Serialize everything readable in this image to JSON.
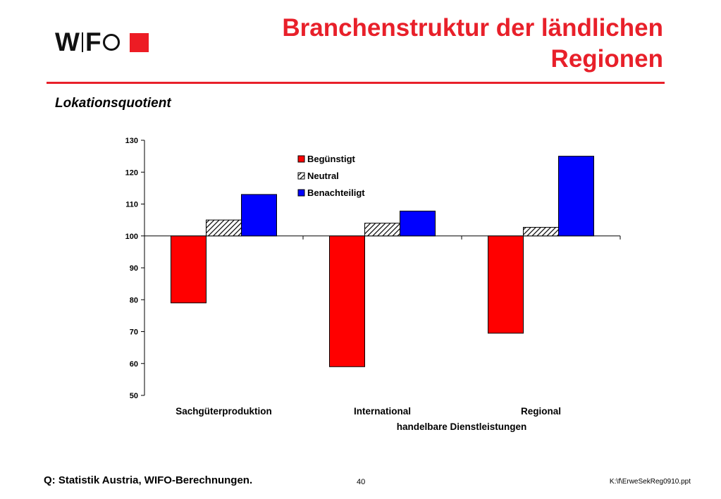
{
  "header": {
    "logo_text_1": "W",
    "logo_text_2": "F",
    "title_line1": "Branchenstruktur der ländlichen",
    "title_line2": "Regionen",
    "accent_color": "#e8202a"
  },
  "subtitle": "Lokationsquotient",
  "chart_data": {
    "type": "bar",
    "title": "",
    "ylabel": "",
    "xlabel": "",
    "baseline": 100,
    "ylim": [
      50,
      130
    ],
    "yticks": [
      130,
      120,
      110,
      100,
      90,
      80,
      70,
      60,
      50
    ],
    "categories": [
      "Sachgüterproduktion",
      "International",
      "Regional"
    ],
    "category_group_label": "handelbare Dienstleistungen",
    "grid": false,
    "legend_position": "top-right",
    "series": [
      {
        "name": "Begünstigt",
        "color": "#ff0000",
        "pattern": "solid",
        "values": [
          79,
          59,
          69.5
        ]
      },
      {
        "name": "Neutral",
        "color": "#ffffff",
        "pattern": "diagonal-hatch",
        "values": [
          105,
          104,
          102.7
        ]
      },
      {
        "name": "Benachteiligt",
        "color": "#0000ff",
        "pattern": "solid",
        "values": [
          113,
          107.8,
          125
        ]
      }
    ]
  },
  "footer": {
    "source": "Q: Statistik Austria, WIFO-Berechnungen.",
    "page_number": "40",
    "filename": "K:\\f\\ErweSekReg0910.ppt"
  }
}
